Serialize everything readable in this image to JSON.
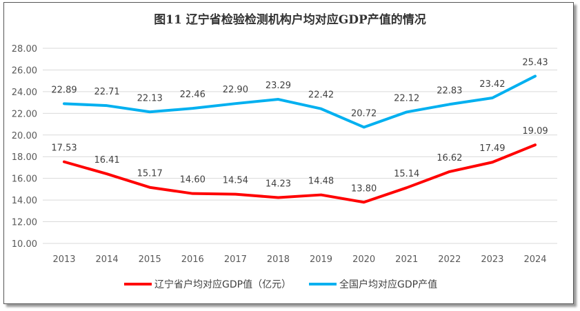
{
  "chart_data": {
    "type": "line",
    "title": "图11 辽宁省检验检测机构户均对应GDP产值的情况",
    "categories": [
      "2013",
      "2014",
      "2015",
      "2016",
      "2017",
      "2018",
      "2019",
      "2020",
      "2021",
      "2022",
      "2023",
      "2024"
    ],
    "series": [
      {
        "name": "辽宁省户均对应GDP值（亿元）",
        "color": "#FF0000",
        "values": [
          17.53,
          16.41,
          15.17,
          14.6,
          14.54,
          14.23,
          14.48,
          13.8,
          15.14,
          16.62,
          17.49,
          19.09
        ],
        "labels": [
          "17.53",
          "16.41",
          "15.17",
          "14.60",
          "14.54",
          "14.23",
          "14.48",
          "13.80",
          "15.14",
          "16.62",
          "17.49",
          "19.09"
        ]
      },
      {
        "name": "全国户均对应GDP产值",
        "color": "#00B0F0",
        "values": [
          22.89,
          22.71,
          22.13,
          22.46,
          22.9,
          23.29,
          22.42,
          20.72,
          22.12,
          22.83,
          23.42,
          25.43
        ],
        "labels": [
          "22.89",
          "22.71",
          "22.13",
          "22.46",
          "22.90",
          "23.29",
          "22.42",
          "20.72",
          "22.12",
          "22.83",
          "23.42",
          "25.43"
        ]
      }
    ],
    "ylim": [
      10,
      28
    ],
    "yticks": [
      "10.00",
      "12.00",
      "14.00",
      "16.00",
      "18.00",
      "20.00",
      "22.00",
      "24.00",
      "26.00",
      "28.00"
    ],
    "grid": true,
    "legend": "bottom"
  }
}
